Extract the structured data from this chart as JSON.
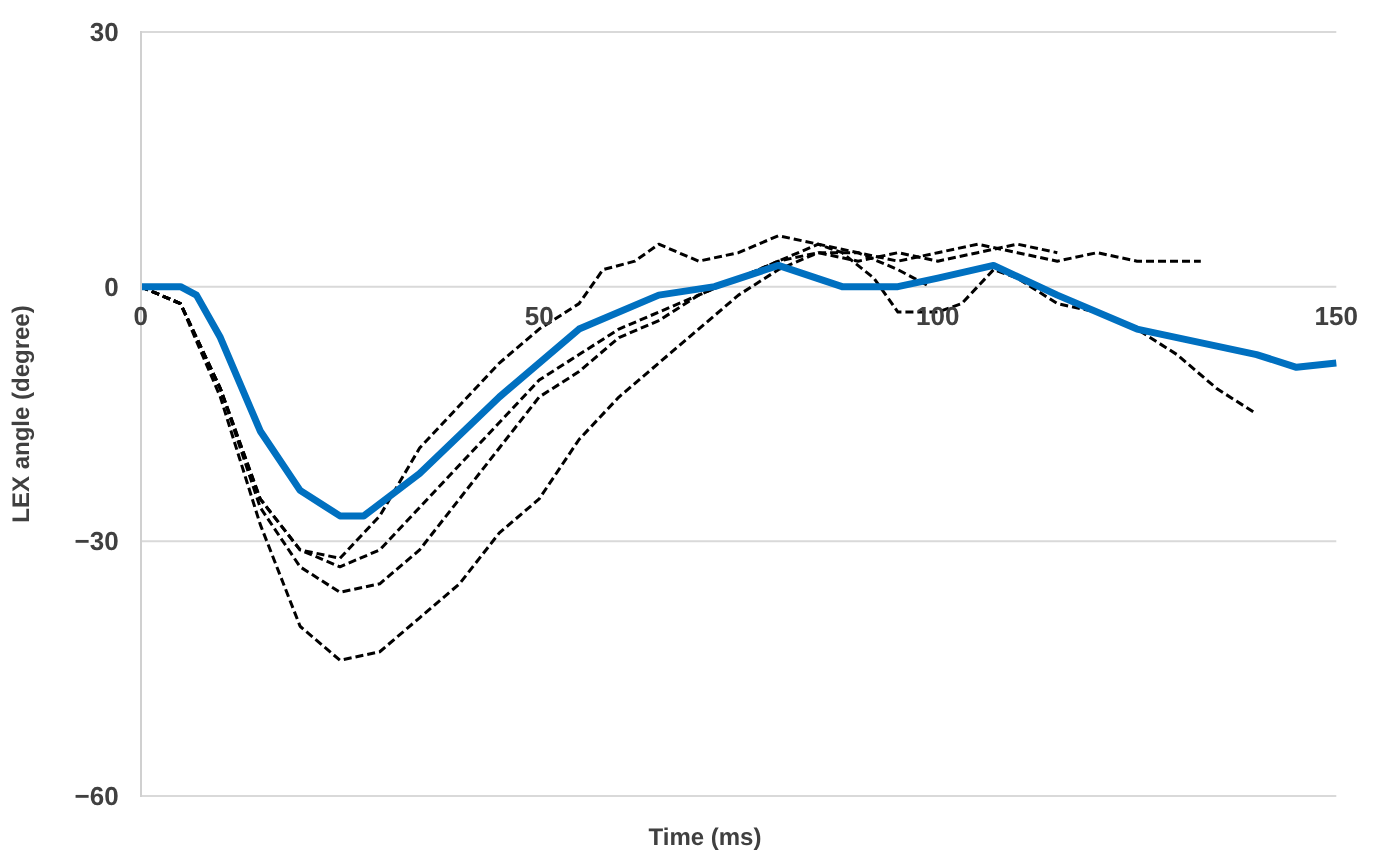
{
  "chart_data": {
    "type": "line",
    "xlabel": "Time (ms)",
    "ylabel": "LEX angle (degree)",
    "xlim": [
      0,
      150
    ],
    "xticks": [
      0,
      50,
      100,
      150
    ],
    "ylim": [
      -60,
      30
    ],
    "yticks": [
      -60,
      -30,
      0,
      30
    ],
    "grid": "y",
    "marker": "none",
    "series": [
      {
        "color": "#000000",
        "line_style": "dashed",
        "x": [
          0,
          5,
          10,
          15,
          20,
          25,
          30,
          35,
          40,
          45,
          50,
          55,
          58,
          62,
          65,
          70,
          75,
          80,
          85,
          90,
          95,
          100,
          105,
          110,
          115,
          120,
          125,
          133
        ],
        "values": [
          0,
          -2,
          -12,
          -25,
          -31,
          -32,
          -27,
          -19,
          -14,
          -9,
          -5,
          -2,
          2,
          3,
          5,
          3,
          4,
          6,
          5,
          4,
          3,
          4,
          5,
          4,
          3,
          4,
          3,
          3
        ]
      },
      {
        "color": "#000000",
        "line_style": "dashed",
        "x": [
          0,
          5,
          10,
          15,
          20,
          25,
          30,
          35,
          40,
          45,
          50,
          55,
          60,
          65,
          70,
          75,
          80,
          85,
          88,
          92,
          95,
          100,
          103,
          107,
          110,
          115,
          120,
          125,
          130,
          135,
          140
        ],
        "values": [
          0,
          -2,
          -12,
          -26,
          -33,
          -36,
          -35,
          -31,
          -25,
          -19,
          -13,
          -10,
          -6,
          -4,
          -1,
          1,
          3,
          5,
          4,
          1,
          -3,
          -3,
          -2,
          2,
          1,
          -2,
          -3,
          -5,
          -8,
          -12,
          -15
        ]
      },
      {
        "color": "#000000",
        "line_style": "dashed",
        "x": [
          0,
          5,
          10,
          15,
          20,
          25,
          30,
          35,
          40,
          45,
          50,
          55,
          60,
          65,
          70,
          75,
          80,
          85,
          90,
          95,
          99
        ],
        "values": [
          0,
          -2,
          -13,
          -28,
          -40,
          -44,
          -43,
          -39,
          -35,
          -29,
          -25,
          -18,
          -13,
          -9,
          -5,
          -1,
          2,
          4,
          4,
          2,
          0
        ]
      },
      {
        "color": "#000000",
        "line_style": "dashed",
        "x": [
          0,
          5,
          10,
          15,
          20,
          25,
          30,
          35,
          40,
          45,
          50,
          55,
          60,
          65,
          70,
          75,
          80,
          85,
          90,
          95,
          100,
          105,
          110,
          115
        ],
        "values": [
          0,
          -2,
          -12,
          -25,
          -31,
          -33,
          -31,
          -26,
          -21,
          -16,
          -11,
          -8,
          -5,
          -3,
          -1,
          1,
          3,
          4,
          3,
          4,
          3,
          4,
          5,
          4
        ]
      },
      {
        "color": "#0070c0",
        "line_style": "solid",
        "x": [
          0,
          5,
          7,
          10,
          15,
          20,
          25,
          28,
          35,
          45,
          55,
          65,
          72,
          80,
          88,
          95,
          100,
          107,
          115,
          125,
          135,
          140,
          145,
          150
        ],
        "values": [
          0,
          0,
          -1,
          -6,
          -17,
          -24,
          -27,
          -27,
          -22,
          -13,
          -5,
          -1,
          0,
          2.5,
          0,
          0,
          1,
          2.5,
          -1,
          -5,
          -7,
          -8,
          -9.5,
          -9
        ]
      }
    ]
  }
}
